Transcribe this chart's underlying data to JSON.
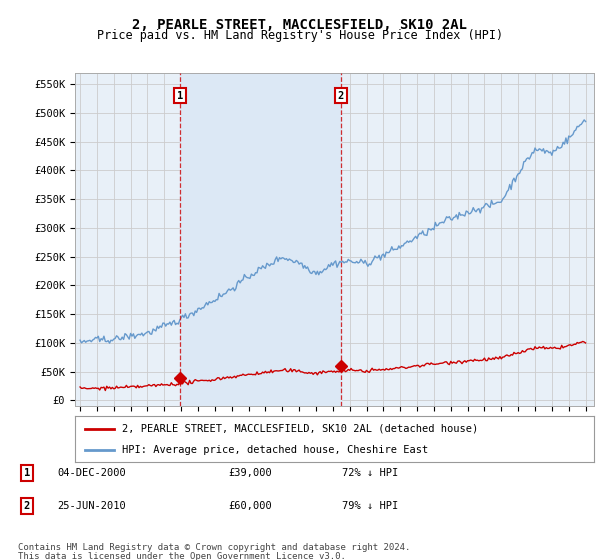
{
  "title": "2, PEARLE STREET, MACCLESFIELD, SK10 2AL",
  "subtitle": "Price paid vs. HM Land Registry's House Price Index (HPI)",
  "legend_line1": "2, PEARLE STREET, MACCLESFIELD, SK10 2AL (detached house)",
  "legend_line2": "HPI: Average price, detached house, Cheshire East",
  "footnote1": "Contains HM Land Registry data © Crown copyright and database right 2024.",
  "footnote2": "This data is licensed under the Open Government Licence v3.0.",
  "sale1_date": "04-DEC-2000",
  "sale1_price": "£39,000",
  "sale1_hpi": "72% ↓ HPI",
  "sale2_date": "25-JUN-2010",
  "sale2_price": "£60,000",
  "sale2_hpi": "79% ↓ HPI",
  "sale1_year": 2000.92,
  "sale1_value": 39000,
  "sale2_year": 2010.48,
  "sale2_value": 60000,
  "property_color": "#cc0000",
  "hpi_color": "#6699cc",
  "shade_color": "#dce8f5",
  "background_color": "#ffffff",
  "plot_bg_color": "#e8f0f8",
  "grid_color": "#cccccc",
  "ylim": [
    0,
    560000
  ],
  "xlim_start": 1994.7,
  "xlim_end": 2025.5
}
